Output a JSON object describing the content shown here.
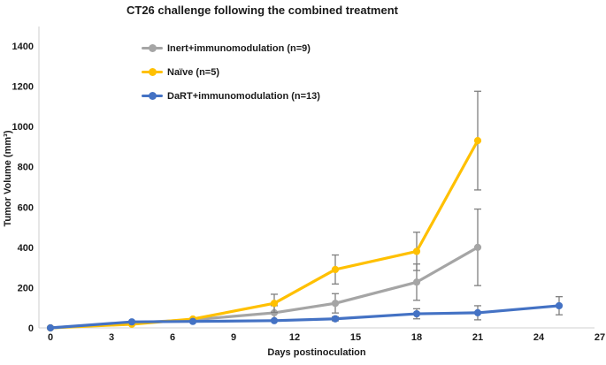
{
  "chart_data": {
    "type": "line",
    "title": "CT26 challenge following the combined treatment",
    "xlabel": "Days postinoculation",
    "ylabel": "Tumor Volume (mm³)",
    "xlim": [
      0,
      27
    ],
    "ylim": [
      0,
      1400
    ],
    "xticks": [
      0,
      3,
      6,
      9,
      12,
      15,
      18,
      21,
      24,
      27
    ],
    "yticks": [
      0,
      200,
      400,
      600,
      800,
      1000,
      1200,
      1400
    ],
    "grid": false,
    "legend_position": "top-left-inside",
    "error_bar_color": "#7f7f7f",
    "axis_line_color": "#d9d9d9",
    "text_color": "#1a1a1a",
    "background_color": "#ffffff",
    "series": [
      {
        "name": "Inert+immunomodulation (n=9)",
        "color": "#A5A5A5",
        "x": [
          0,
          4,
          7,
          11,
          14,
          18,
          21
        ],
        "y": [
          0,
          25,
          40,
          75,
          122,
          227,
          400
        ],
        "yerr": [
          0,
          0,
          0,
          35,
          48,
          90,
          190
        ]
      },
      {
        "name": "Naïve (n=5)",
        "color": "#FFC000",
        "x": [
          0,
          4,
          7,
          11,
          14,
          18,
          21
        ],
        "y": [
          0,
          18,
          44,
          122,
          290,
          380,
          930
        ],
        "yerr": [
          0,
          0,
          0,
          45,
          72,
          95,
          245
        ]
      },
      {
        "name": "DaRT+immunomodulation (n=13)",
        "color": "#4472C4",
        "x": [
          0,
          4,
          7,
          11,
          14,
          18,
          21,
          25
        ],
        "y": [
          0,
          30,
          32,
          36,
          45,
          70,
          75,
          110
        ],
        "yerr": [
          0,
          0,
          0,
          0,
          10,
          25,
          35,
          45
        ]
      }
    ]
  }
}
